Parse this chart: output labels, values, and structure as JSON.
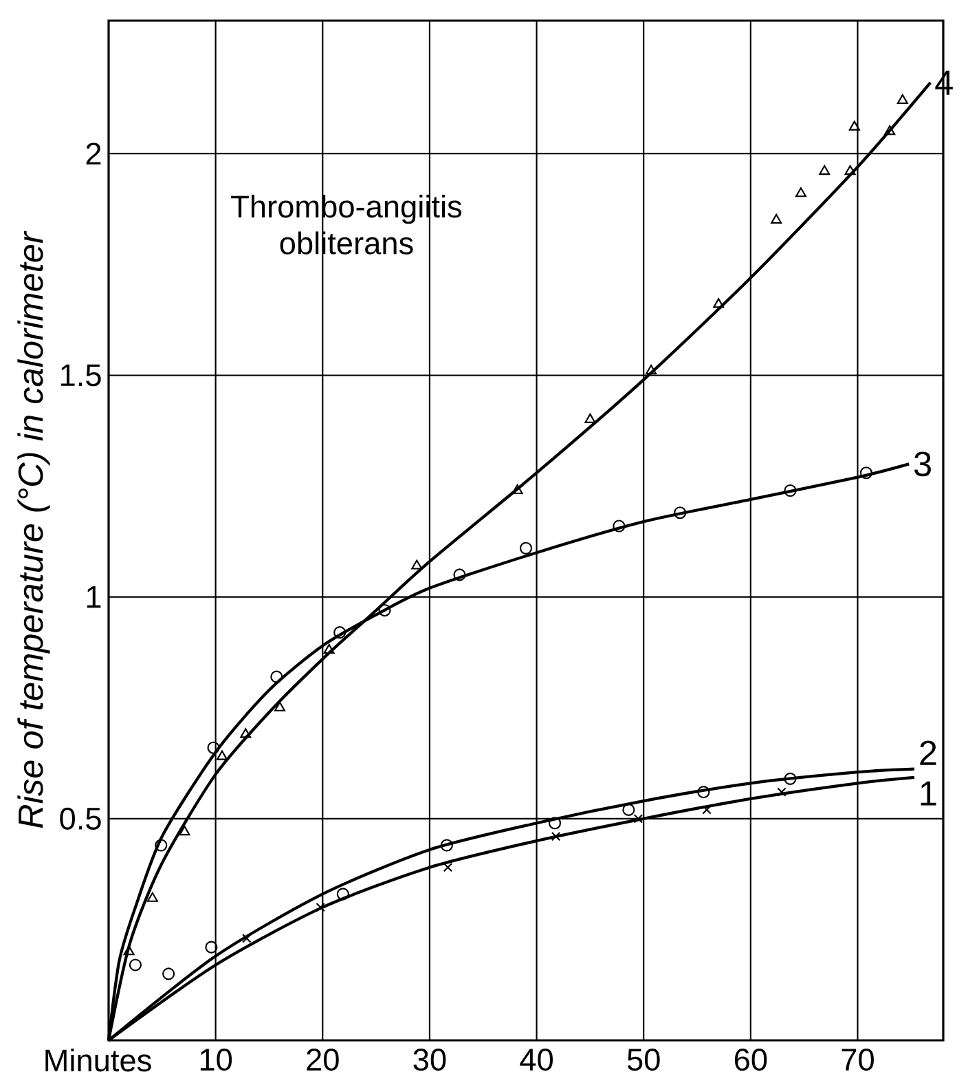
{
  "chart_data": {
    "type": "scatter",
    "ylabel": "Rise of temperature (°C) in calorimeter",
    "xlabel": "Minutes",
    "annotations": [
      "Thrombo-angiitis obliterans"
    ],
    "xlim": [
      0,
      78
    ],
    "ylim": [
      0,
      2.3
    ],
    "xticks": [
      10,
      20,
      30,
      40,
      50,
      60,
      70
    ],
    "yticks": [
      0.5,
      1,
      1.5,
      2
    ],
    "grid": true,
    "series": [
      {
        "marker": "cross",
        "color": "#000000",
        "x": [
          12.9,
          19.8,
          31.7,
          41.8,
          49.5,
          55.9,
          62.9
        ],
        "values": [
          0.23,
          0.3,
          0.39,
          0.46,
          0.5,
          0.52,
          0.56
        ]
      },
      {
        "marker": "circle",
        "color": "#000000",
        "x": [
          5.6,
          9.6,
          21.9,
          31.6,
          41.7,
          48.6,
          55.6,
          63.7
        ],
        "values": [
          0.15,
          0.21,
          0.33,
          0.44,
          0.49,
          0.52,
          0.56,
          0.59
        ]
      },
      {
        "marker": "circle",
        "color": "#000000",
        "x": [
          2.5,
          4.9,
          9.8,
          15.7,
          21.6,
          25.8,
          32.8,
          39.0,
          47.7,
          53.4,
          63.7,
          70.8
        ],
        "values": [
          0.17,
          0.44,
          0.66,
          0.82,
          0.92,
          0.97,
          1.05,
          1.11,
          1.16,
          1.19,
          1.24,
          1.28
        ]
      },
      {
        "marker": "triangle",
        "color": "#000000",
        "x": [
          1.9,
          4.1,
          7.1,
          10.6,
          12.8,
          16.0,
          20.6,
          28.8,
          38.2,
          45.0,
          50.7,
          57.0,
          62.4,
          64.7,
          66.9,
          69.3,
          69.7,
          73.0,
          74.2
        ],
        "values": [
          0.2,
          0.32,
          0.47,
          0.64,
          0.69,
          0.75,
          0.88,
          1.07,
          1.24,
          1.4,
          1.51,
          1.66,
          1.85,
          1.91,
          1.96,
          1.96,
          2.06,
          2.05,
          2.12
        ]
      },
      {
        "type": "line",
        "name": "1",
        "marker": "none",
        "line_style": "solid",
        "color": "#000000",
        "x": [
          0,
          10,
          20,
          30,
          40,
          50,
          60,
          70,
          75.3
        ],
        "values": [
          0,
          0.17,
          0.3,
          0.39,
          0.45,
          0.5,
          0.545,
          0.58,
          0.593
        ]
      },
      {
        "type": "line",
        "name": "2",
        "marker": "none",
        "line_style": "solid",
        "color": "#000000",
        "x": [
          0,
          10,
          20,
          30,
          40,
          50,
          60,
          70,
          75.3
        ],
        "values": [
          0,
          0.19,
          0.33,
          0.43,
          0.49,
          0.54,
          0.58,
          0.605,
          0.612
        ]
      },
      {
        "type": "line",
        "name": "3",
        "marker": "none",
        "line_style": "solid",
        "color": "#000000",
        "x": [
          0,
          1,
          2.5,
          5,
          10,
          15,
          20,
          25,
          30,
          40,
          50,
          60,
          70,
          74.8
        ],
        "values": [
          0,
          0.18,
          0.3,
          0.46,
          0.65,
          0.79,
          0.89,
          0.96,
          1.02,
          1.1,
          1.17,
          1.22,
          1.27,
          1.3
        ]
      },
      {
        "type": "line",
        "name": "4",
        "marker": "none",
        "line_style": "solid",
        "color": "#000000",
        "x": [
          0,
          2,
          5,
          10,
          15,
          20,
          25,
          30,
          40,
          50,
          60,
          70,
          76.8
        ],
        "values": [
          0,
          0.22,
          0.4,
          0.6,
          0.74,
          0.86,
          0.97,
          1.08,
          1.28,
          1.49,
          1.72,
          1.97,
          2.16
        ]
      }
    ]
  }
}
